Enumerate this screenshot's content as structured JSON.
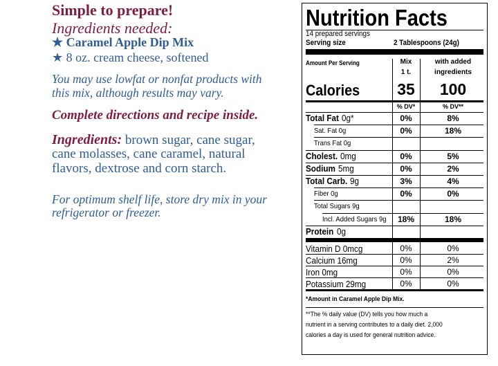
{
  "left": {
    "heading": "Simple to prepare!",
    "needed_title": "Ingredients needed:",
    "needed": [
      "★ Caramel Apple Dip Mix",
      "★ 8 oz. cream cheese, softened"
    ],
    "note": [
      "You may use lowfat or nonfat products with",
      "this mix, although results may vary."
    ],
    "directions": "Complete directions and recipe inside.",
    "ingredients_label": "Ingredients:",
    "ingredients": [
      "brown sugar, cane sugar,",
      "cane molasses, cane caramel, natural",
      "flavors, dextrose and corn starch."
    ],
    "storage": [
      "For optimum shelf life, store dry mix in your",
      "refrigerator or freezer."
    ]
  },
  "nutrition": {
    "title": "Nutrition Facts",
    "servings": "14 prepared servings",
    "serving_size_label": "Serving size",
    "serving_size": "2 Tablespoons (24g)",
    "amount_label": "Amount Per Serving",
    "mix_header": [
      "Mix",
      "1 t."
    ],
    "added_header": [
      "with added",
      "ingredients"
    ],
    "calories_label": "Calories",
    "calories_mix": "35",
    "calories_added": "100",
    "dv_mix": "% DV*",
    "dv_added": "% DV**",
    "rows": [
      {
        "name": "Total Fat",
        "amount": "0g*",
        "mix": "0%",
        "added": "8%",
        "sub": [
          {
            "name": "Sat. Fat 0g",
            "mix": "0%",
            "added": "18%"
          },
          {
            "name": "Trans Fat 0g"
          }
        ]
      },
      {
        "name": "Cholest.",
        "amount": "0mg",
        "mix": "0%",
        "added": "5%"
      },
      {
        "name": "Sodium",
        "amount": "5mg",
        "mix": "0%",
        "added": "2%"
      },
      {
        "name": "Total Carb.",
        "amount": "9g",
        "mix": "3%",
        "added": "4%",
        "sub": [
          {
            "name": "Fiber 0g",
            "mix": "0%",
            "added": "0%"
          },
          {
            "name": "Total Sugars 9g",
            "sub": [
              {
                "name": "Incl. Added Sugars 9g",
                "mix": "18%",
                "added": "18%"
              }
            ]
          }
        ]
      },
      {
        "name": "Protein",
        "amount": "0g"
      }
    ],
    "vitamins": [
      {
        "name": "Vitamin D 0mcg",
        "mix": "0%",
        "added": "0%"
      },
      {
        "name": "Calcium 16mg",
        "mix": "0%",
        "added": "2%"
      },
      {
        "name": "Iron 0mg",
        "mix": "0%",
        "added": "0%"
      },
      {
        "name": "Potassium 29mg",
        "mix": "0%",
        "added": "0%"
      }
    ],
    "footnote_amount": "*Amount in Caramel Apple Dip Mix.",
    "footnote_dv": [
      "**The % daily value (DV) tells you how much a",
      "nutrient in a serving contributes to a daily diet. 2,000",
      "calories a day is used for general nutrition advice."
    ]
  }
}
